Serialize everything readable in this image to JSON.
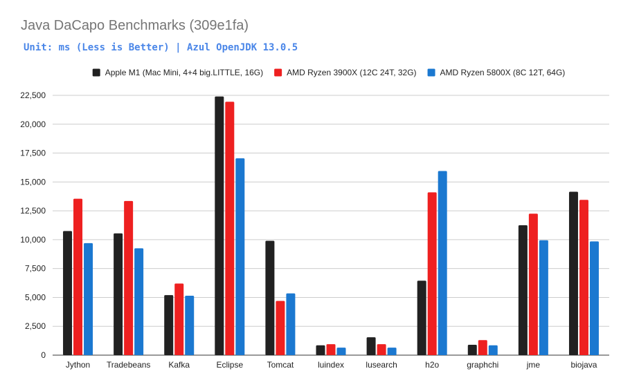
{
  "chart_data": {
    "type": "bar",
    "title": "Java DaCapo Benchmarks (309e1fa)",
    "subtitle": "Unit: ms (Less is Better) | Azul OpenJDK 13.0.5",
    "xlabel": "",
    "ylabel": "",
    "ylim": [
      0,
      22500
    ],
    "yticks": [
      "0",
      "2,500",
      "5,000",
      "7,500",
      "10,000",
      "12,500",
      "15,000",
      "17,500",
      "20,000",
      "22,500"
    ],
    "ytick_values": [
      0,
      2500,
      5000,
      7500,
      10000,
      12500,
      15000,
      17500,
      20000,
      22500
    ],
    "grid": true,
    "legend_position": "top",
    "categories": [
      "Jython",
      "Tradebeans",
      "Kafka",
      "Eclipse",
      "Tomcat",
      "luindex",
      "lusearch",
      "h2o",
      "graphchi",
      "jme",
      "biojava"
    ],
    "series": [
      {
        "name": "Apple M1 (Mac Mini, 4+4 big.LITTLE, 16G)",
        "color": "#212121",
        "values": [
          10750,
          10550,
          5200,
          22400,
          9900,
          850,
          1550,
          6450,
          900,
          11250,
          14150
        ]
      },
      {
        "name": "AMD Ryzen 3900X (12C 24T, 32G)",
        "color": "#ee2020",
        "values": [
          13550,
          13350,
          6200,
          21950,
          4700,
          950,
          950,
          14100,
          1300,
          12250,
          13450
        ]
      },
      {
        "name": "AMD Ryzen 5800X (8C 12T, 64G)",
        "color": "#1b78d0",
        "values": [
          9700,
          9250,
          5150,
          17050,
          5350,
          650,
          650,
          15950,
          850,
          9950,
          9850
        ]
      }
    ]
  }
}
